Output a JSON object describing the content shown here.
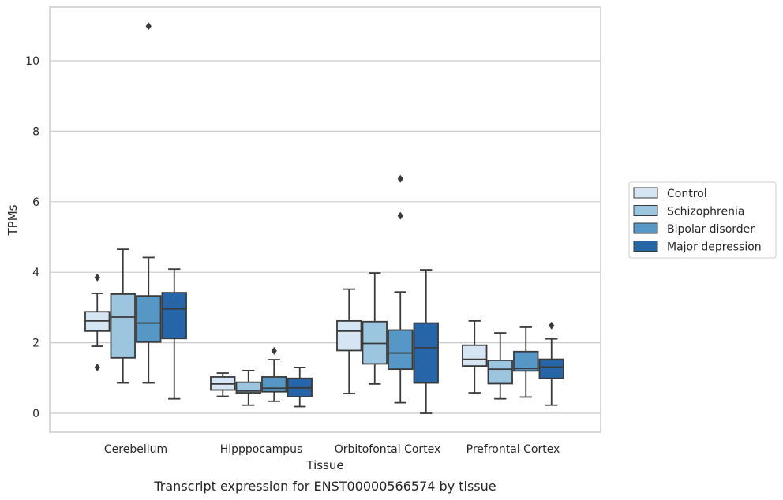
{
  "chart_data": {
    "type": "box",
    "caption": "Transcript expression for ENST00000566574 by tissue",
    "xlabel": "Tissue",
    "ylabel": "TPMs",
    "ylim": [
      -0.5,
      11.7
    ],
    "yticks": [
      0,
      2,
      4,
      6,
      8,
      10
    ],
    "grid": "horizontal",
    "legend_position": "right",
    "categories": [
      "Cerebellum",
      "Hipppocampus",
      "Orbitofontal Cortex",
      "Prefrontal Cortex"
    ],
    "series": [
      {
        "name": "Control",
        "color": "#d6e5f3",
        "boxes": [
          {
            "whisker_low": 1.9,
            "q1": 2.33,
            "median": 2.62,
            "q3": 2.88,
            "whisker_high": 3.4,
            "outliers": [
              3.85,
              1.3
            ]
          },
          {
            "whisker_low": 0.48,
            "q1": 0.66,
            "median": 0.83,
            "q3": 1.03,
            "whisker_high": 1.14,
            "outliers": []
          },
          {
            "whisker_low": 0.56,
            "q1": 1.78,
            "median": 2.33,
            "q3": 2.62,
            "whisker_high": 3.52,
            "outliers": []
          },
          {
            "whisker_low": 0.58,
            "q1": 1.34,
            "median": 1.53,
            "q3": 1.93,
            "whisker_high": 2.62,
            "outliers": []
          }
        ]
      },
      {
        "name": "Schizophrenia",
        "color": "#9cc6e0",
        "boxes": [
          {
            "whisker_low": 0.86,
            "q1": 1.57,
            "median": 2.73,
            "q3": 3.38,
            "whisker_high": 4.65,
            "outliers": []
          },
          {
            "whisker_low": 0.23,
            "q1": 0.58,
            "median": 0.63,
            "q3": 0.88,
            "whisker_high": 1.21,
            "outliers": []
          },
          {
            "whisker_low": 0.83,
            "q1": 1.4,
            "median": 1.98,
            "q3": 2.6,
            "whisker_high": 3.98,
            "outliers": []
          },
          {
            "whisker_low": 0.41,
            "q1": 0.84,
            "median": 1.25,
            "q3": 1.5,
            "whisker_high": 2.28,
            "outliers": []
          }
        ]
      },
      {
        "name": "Bipolar disorder",
        "color": "#5697c6",
        "boxes": [
          {
            "whisker_low": 0.86,
            "q1": 2.02,
            "median": 2.56,
            "q3": 3.33,
            "whisker_high": 4.42,
            "outliers": [
              10.98
            ]
          },
          {
            "whisker_low": 0.34,
            "q1": 0.61,
            "median": 0.71,
            "q3": 1.03,
            "whisker_high": 1.52,
            "outliers": [
              1.77
            ]
          },
          {
            "whisker_low": 0.3,
            "q1": 1.25,
            "median": 1.71,
            "q3": 2.36,
            "whisker_high": 3.44,
            "outliers": [
              6.65,
              5.6
            ]
          },
          {
            "whisker_low": 0.46,
            "q1": 1.2,
            "median": 1.27,
            "q3": 1.75,
            "whisker_high": 2.44,
            "outliers": []
          }
        ]
      },
      {
        "name": "Major depression",
        "color": "#2665a8",
        "boxes": [
          {
            "whisker_low": 0.41,
            "q1": 2.12,
            "median": 2.96,
            "q3": 3.42,
            "whisker_high": 4.09,
            "outliers": []
          },
          {
            "whisker_low": 0.19,
            "q1": 0.47,
            "median": 0.72,
            "q3": 0.99,
            "whisker_high": 1.3,
            "outliers": []
          },
          {
            "whisker_low": 0.0,
            "q1": 0.86,
            "median": 1.86,
            "q3": 2.56,
            "whisker_high": 4.07,
            "outliers": []
          },
          {
            "whisker_low": 0.23,
            "q1": 0.99,
            "median": 1.31,
            "q3": 1.53,
            "whisker_high": 2.11,
            "outliers": [
              2.49
            ]
          }
        ]
      }
    ]
  }
}
